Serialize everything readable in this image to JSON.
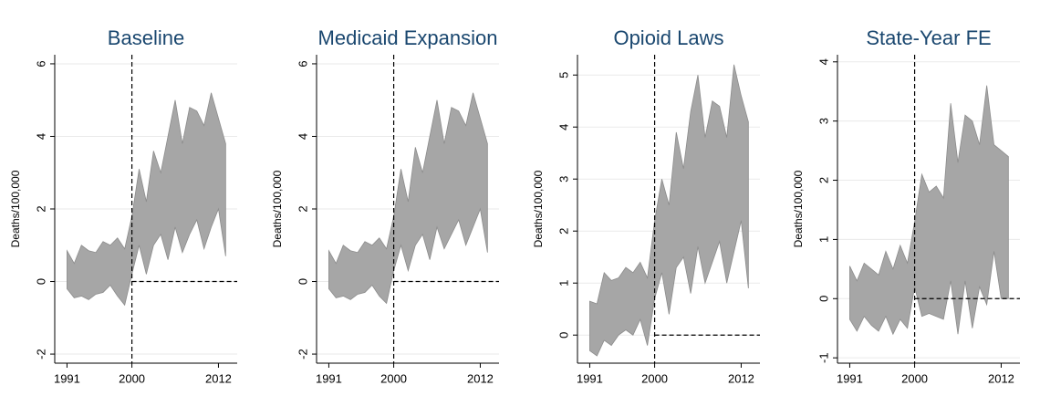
{
  "chart_data": [
    {
      "type": "band",
      "title": "Baseline",
      "y_label": "Deaths/100,000",
      "x": [
        1991,
        1992,
        1993,
        1994,
        1995,
        1996,
        1997,
        1998,
        1999,
        2000,
        2001,
        2002,
        2003,
        2004,
        2005,
        2006,
        2007,
        2008,
        2009,
        2010,
        2011,
        2012,
        2013
      ],
      "series": [
        {
          "color": "#a6a6a6",
          "values": [
            -0.2,
            -0.45,
            -0.4,
            -0.5,
            -0.35,
            -0.3,
            -0.1,
            -0.4,
            -0.65,
            0.2,
            1.0,
            0.2,
            1.0,
            1.3,
            0.6,
            1.5,
            0.8,
            1.3,
            1.7,
            0.9,
            1.5,
            2.0,
            0.7
          ]
        },
        {
          "color": "#a6a6a6",
          "values": [
            0.85,
            0.5,
            1.0,
            0.85,
            0.8,
            1.1,
            1.0,
            1.2,
            0.9,
            1.8,
            3.1,
            2.2,
            3.6,
            3.0,
            4.0,
            5.0,
            3.8,
            4.8,
            4.7,
            4.3,
            5.2,
            4.5,
            3.8
          ]
        }
      ],
      "xlim": [
        1989.3,
        2014.6
      ],
      "xticks": [
        1991,
        2000,
        2012
      ],
      "ylim": [
        -2.25,
        6.25
      ],
      "yticks": [
        -2,
        0,
        2,
        4,
        6
      ],
      "grid": true,
      "vline": 2000,
      "hline": 0
    },
    {
      "type": "band",
      "title": "Medicaid Expansion",
      "y_label": "Deaths/100,000",
      "x": [
        1991,
        1992,
        1993,
        1994,
        1995,
        1996,
        1997,
        1998,
        1999,
        2000,
        2001,
        2002,
        2003,
        2004,
        2005,
        2006,
        2007,
        2008,
        2009,
        2010,
        2011,
        2012,
        2013
      ],
      "series": [
        {
          "color": "#a6a6a6",
          "values": [
            -0.2,
            -0.45,
            -0.4,
            -0.5,
            -0.35,
            -0.3,
            -0.1,
            -0.4,
            -0.6,
            0.3,
            1.0,
            0.3,
            1.0,
            1.3,
            0.6,
            1.5,
            0.9,
            1.3,
            1.7,
            1.0,
            1.5,
            2.0,
            0.8
          ]
        },
        {
          "color": "#a6a6a6",
          "values": [
            0.85,
            0.5,
            1.0,
            0.85,
            0.8,
            1.1,
            1.0,
            1.2,
            0.9,
            1.8,
            3.1,
            2.2,
            3.7,
            3.0,
            4.0,
            5.0,
            3.8,
            4.8,
            4.7,
            4.3,
            5.2,
            4.5,
            3.8
          ]
        }
      ],
      "xlim": [
        1989.3,
        2014.6
      ],
      "xticks": [
        1991,
        2000,
        2012
      ],
      "ylim": [
        -2.25,
        6.25
      ],
      "yticks": [
        -2,
        0,
        2,
        4,
        6
      ],
      "grid": true,
      "vline": 2000,
      "hline": 0
    },
    {
      "type": "band",
      "title": "Opioid Laws",
      "y_label": "Deaths/100,000",
      "x": [
        1991,
        1992,
        1993,
        1994,
        1995,
        1996,
        1997,
        1998,
        1999,
        2000,
        2001,
        2002,
        2003,
        2004,
        2005,
        2006,
        2007,
        2008,
        2009,
        2010,
        2011,
        2012,
        2013
      ],
      "series": [
        {
          "color": "#a6a6a6",
          "values": [
            -0.3,
            -0.4,
            -0.1,
            -0.2,
            0.0,
            0.1,
            0.0,
            0.3,
            -0.2,
            0.7,
            1.2,
            0.4,
            1.3,
            1.5,
            0.8,
            1.7,
            1.0,
            1.4,
            1.8,
            1.0,
            1.6,
            2.2,
            0.9
          ]
        },
        {
          "color": "#a6a6a6",
          "values": [
            0.65,
            0.6,
            1.2,
            1.05,
            1.1,
            1.3,
            1.2,
            1.4,
            1.1,
            2.2,
            3.0,
            2.5,
            3.9,
            3.2,
            4.3,
            5.0,
            3.8,
            4.5,
            4.4,
            3.8,
            5.2,
            4.6,
            4.1
          ]
        }
      ],
      "xlim": [
        1989.3,
        2014.6
      ],
      "xticks": [
        1991,
        2000,
        2012
      ],
      "ylim": [
        -0.54,
        5.39
      ],
      "yticks": [
        0,
        1,
        2,
        3,
        4,
        5
      ],
      "grid": true,
      "vline": 2000,
      "hline": 0
    },
    {
      "type": "band",
      "title": "State-Year FE",
      "y_label": "Deaths/100,000",
      "x": [
        1991,
        1992,
        1993,
        1994,
        1995,
        1996,
        1997,
        1998,
        1999,
        2000,
        2001,
        2002,
        2003,
        2004,
        2005,
        2006,
        2007,
        2008,
        2009,
        2010,
        2011,
        2012,
        2013
      ],
      "series": [
        {
          "color": "#a6a6a6",
          "values": [
            -0.35,
            -0.55,
            -0.3,
            -0.45,
            -0.55,
            -0.3,
            -0.6,
            -0.35,
            -0.5,
            0.2,
            -0.3,
            -0.25,
            -0.3,
            -0.35,
            0.3,
            -0.6,
            0.3,
            -0.5,
            0.2,
            -0.1,
            0.8,
            0.0,
            0.0
          ]
        },
        {
          "color": "#a6a6a6",
          "values": [
            0.55,
            0.3,
            0.6,
            0.5,
            0.4,
            0.8,
            0.5,
            0.9,
            0.6,
            1.3,
            2.1,
            1.8,
            1.9,
            1.7,
            3.3,
            2.3,
            3.1,
            3.0,
            2.6,
            3.6,
            2.6,
            2.5,
            2.4
          ]
        }
      ],
      "xlim": [
        1989.3,
        2014.6
      ],
      "xticks": [
        1991,
        2000,
        2012
      ],
      "ylim": [
        -1.09,
        4.12
      ],
      "yticks": [
        -1,
        0,
        1,
        2,
        3,
        4
      ],
      "grid": true,
      "vline": 2000,
      "hline": 0
    }
  ]
}
